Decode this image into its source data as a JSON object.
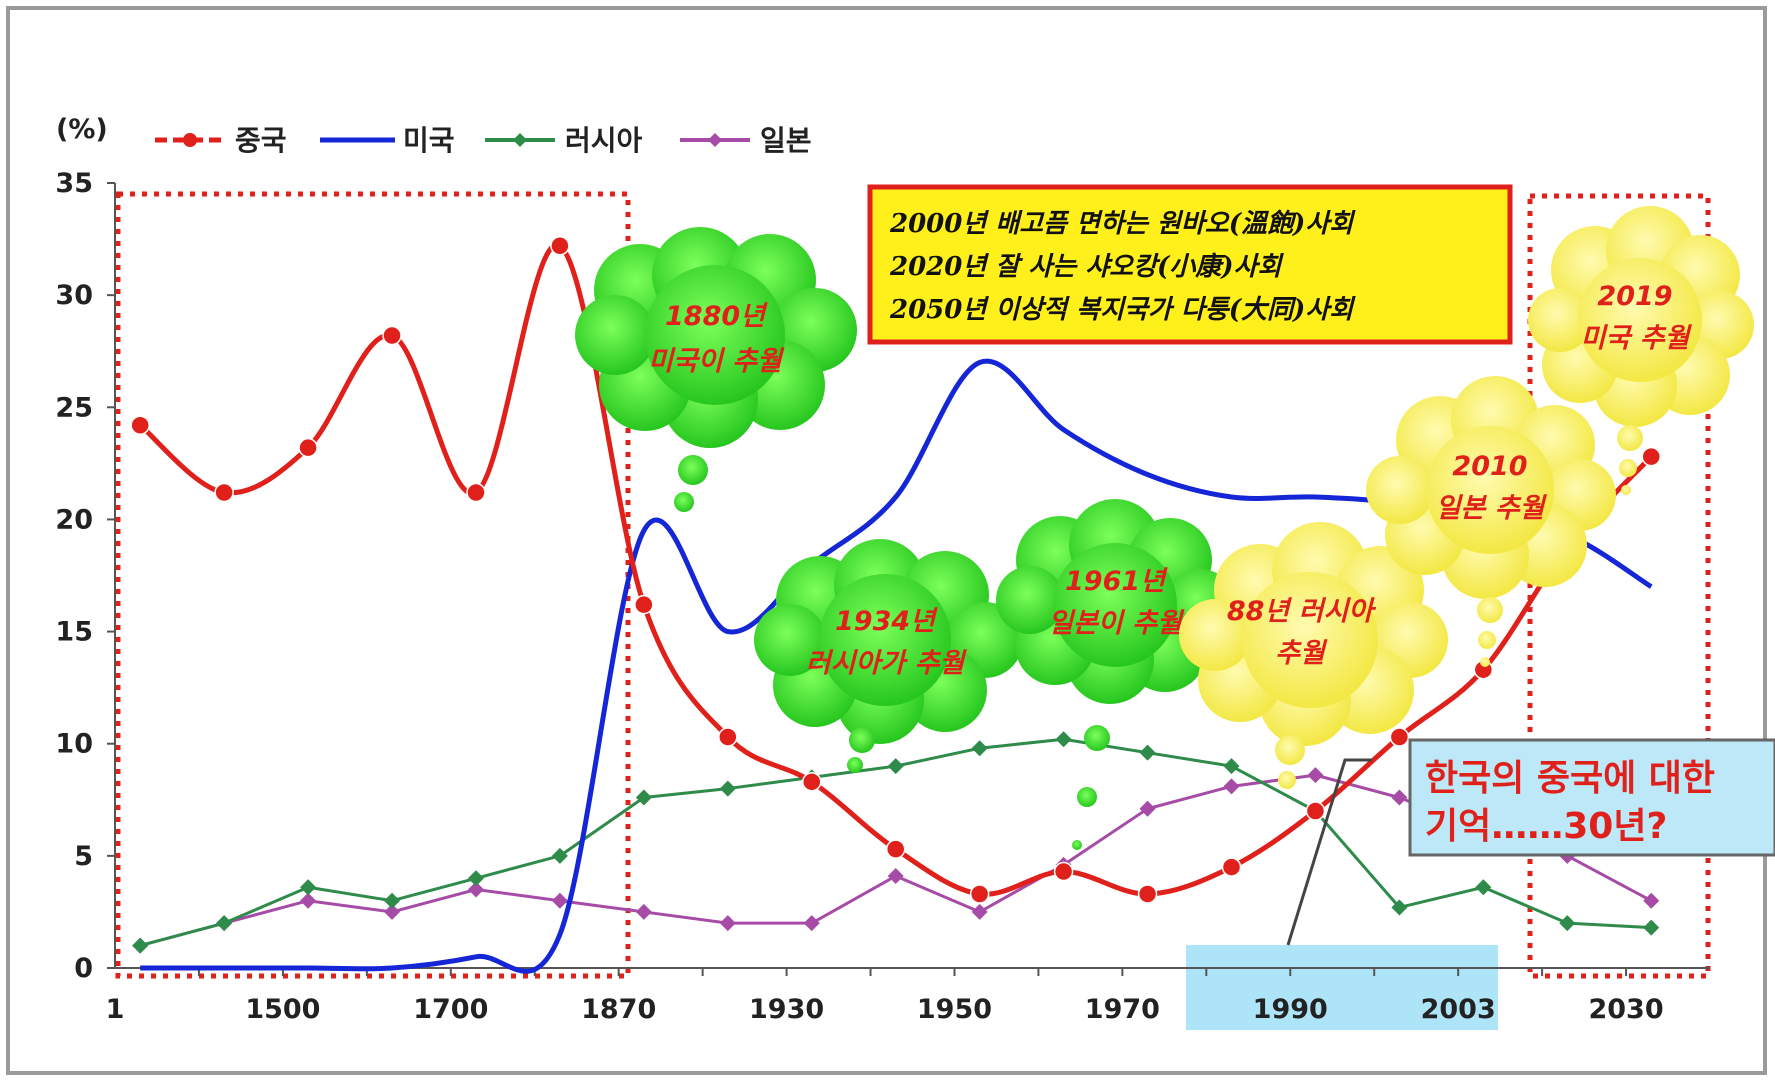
{
  "chart_data": {
    "type": "line",
    "unit_label": "(%)",
    "ylim": [
      0,
      35
    ],
    "y_ticks": [
      "0",
      "5",
      "10",
      "15",
      "20",
      "25",
      "30",
      "35"
    ],
    "x_ticks": [
      "1",
      "1500",
      "1700",
      "1870",
      "1930",
      "1950",
      "1970",
      "1990",
      "2003",
      "2030"
    ],
    "legend_position": "top-left",
    "series": [
      {
        "name": "중국",
        "color": "#e0201a",
        "marker": "circle",
        "points": [
          [
            0.3,
            24.2
          ],
          [
            1.3,
            21.2
          ],
          [
            2.3,
            23.2
          ],
          [
            3.3,
            28.2
          ],
          [
            4.3,
            21.2
          ],
          [
            5.3,
            32.2
          ],
          [
            6.3,
            16.2
          ],
          [
            7.3,
            10.3
          ],
          [
            8.3,
            8.3
          ],
          [
            9.3,
            5.3
          ],
          [
            10.3,
            3.3
          ],
          [
            11.3,
            4.3
          ],
          [
            12.3,
            3.3
          ],
          [
            13.3,
            4.5
          ],
          [
            14.3,
            7.0
          ],
          [
            15.3,
            10.3
          ],
          [
            16.3,
            13.3
          ],
          [
            17.3,
            18.8
          ],
          [
            18.3,
            22.8
          ]
        ]
      },
      {
        "name": "미국",
        "color": "#1426d6",
        "marker": "none",
        "points": [
          [
            0.3,
            0.0
          ],
          [
            1.3,
            0.0
          ],
          [
            2.3,
            0.0
          ],
          [
            3.3,
            0.0
          ],
          [
            4.3,
            0.5
          ],
          [
            5.3,
            1.5
          ],
          [
            6.3,
            19.5
          ],
          [
            7.3,
            15.0
          ],
          [
            8.3,
            18.0
          ],
          [
            9.3,
            21.0
          ],
          [
            10.3,
            27.0
          ],
          [
            11.3,
            24.0
          ],
          [
            12.3,
            22.0
          ],
          [
            13.3,
            21.0
          ],
          [
            14.3,
            21.0
          ],
          [
            15.3,
            20.7
          ],
          [
            16.3,
            19.8
          ],
          [
            17.3,
            19.3
          ],
          [
            18.3,
            17.0
          ]
        ]
      },
      {
        "name": "러시아",
        "color": "#2e8b4a",
        "marker": "diamond",
        "points": [
          [
            0.3,
            1.0
          ],
          [
            1.3,
            2.0
          ],
          [
            2.3,
            3.6
          ],
          [
            3.3,
            3.0
          ],
          [
            4.3,
            4.0
          ],
          [
            5.3,
            5.0
          ],
          [
            6.3,
            7.6
          ],
          [
            7.3,
            8.0
          ],
          [
            8.3,
            8.5
          ],
          [
            9.3,
            9.0
          ],
          [
            10.3,
            9.8
          ],
          [
            11.3,
            10.2
          ],
          [
            12.3,
            9.6
          ],
          [
            13.3,
            9.0
          ],
          [
            14.3,
            7.0
          ],
          [
            15.3,
            2.7
          ],
          [
            16.3,
            3.6
          ],
          [
            17.3,
            2.0
          ],
          [
            18.3,
            1.8
          ]
        ]
      },
      {
        "name": "일본",
        "color": "#a64ca6",
        "marker": "diamond",
        "points": [
          [
            0.3,
            1.0
          ],
          [
            1.3,
            2.0
          ],
          [
            2.3,
            3.0
          ],
          [
            3.3,
            2.5
          ],
          [
            4.3,
            3.5
          ],
          [
            5.3,
            3.0
          ],
          [
            6.3,
            2.5
          ],
          [
            7.3,
            2.0
          ],
          [
            8.3,
            2.0
          ],
          [
            9.3,
            4.1
          ],
          [
            10.3,
            2.5
          ],
          [
            11.3,
            4.6
          ],
          [
            12.3,
            7.1
          ],
          [
            13.3,
            8.1
          ],
          [
            14.3,
            8.6
          ],
          [
            15.3,
            7.6
          ],
          [
            16.3,
            6.1
          ],
          [
            17.3,
            5.0
          ],
          [
            18.3,
            3.0
          ]
        ]
      }
    ],
    "annotations": {
      "box_lines": [
        "2000년 배고픔 면하는 원바오(溫飽)사회",
        "2020년 잘 사는 샤오캉(小康)사회",
        "2050년 이상적 복지국가 다퉁(大同)사회"
      ],
      "clouds": [
        {
          "lines": [
            "1880년",
            "미국이 추월"
          ],
          "color": "green"
        },
        {
          "lines": [
            "1934년",
            "러시아가 추월"
          ],
          "color": "green"
        },
        {
          "lines": [
            "1961년",
            "일본이 추월"
          ],
          "color": "green"
        },
        {
          "lines": [
            "88년 러시아",
            "추월"
          ],
          "color": "yellow"
        },
        {
          "lines": [
            "2010",
            "일본 추월"
          ],
          "color": "yellow"
        },
        {
          "lines": [
            "2019",
            "미국 추월"
          ],
          "color": "yellow"
        }
      ],
      "korea_box_lines": [
        "한국의 중국에 대한",
        "기억……30년?"
      ]
    }
  }
}
